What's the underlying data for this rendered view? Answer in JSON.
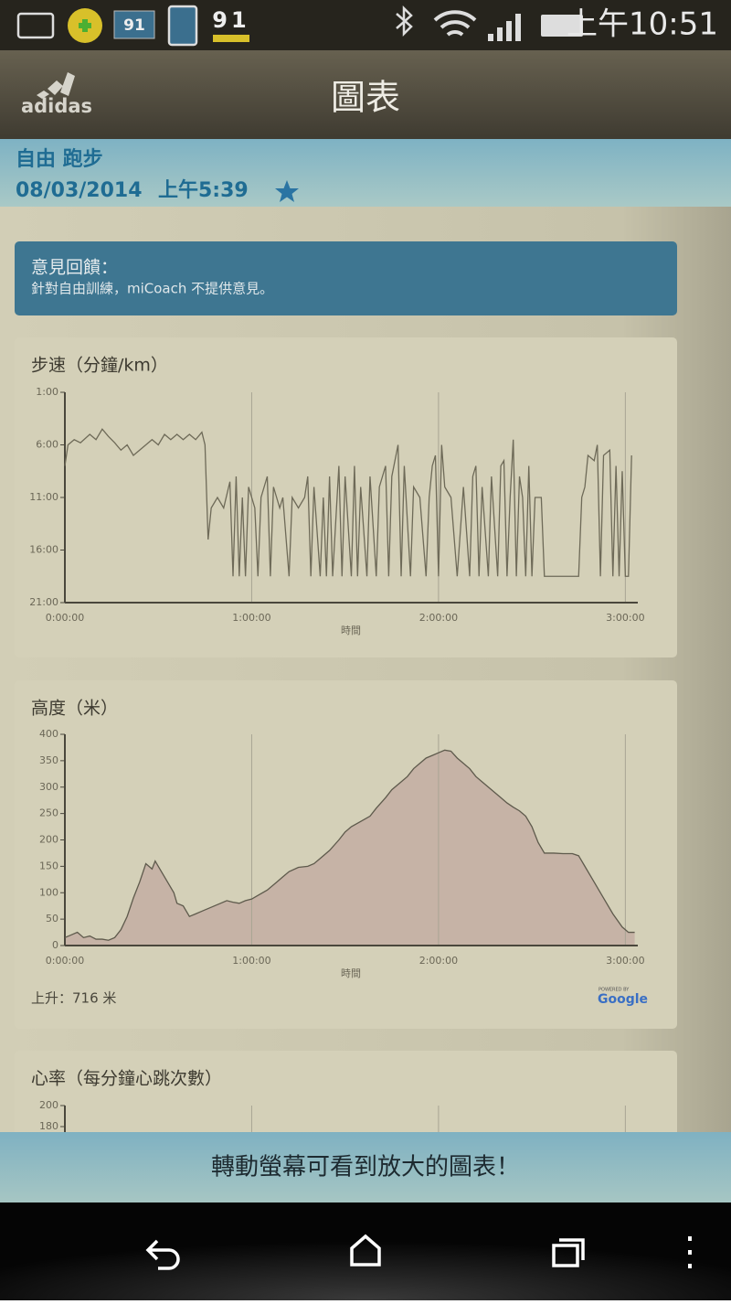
{
  "status_bar": {
    "badge_1": "91",
    "badge_2": "91",
    "time": "上午10:51"
  },
  "header": {
    "logo": "adidas",
    "title": "圖表"
  },
  "activity": {
    "type": "自由 跑步",
    "date": "08/03/2014",
    "time": "上午5:39"
  },
  "feedback": {
    "title": "意見回饋：",
    "text": "針對自由訓練，miCoach 不提供意見。"
  },
  "charts": [
    {
      "type": "line",
      "title": "步速（分鐘/km）",
      "x_label": "時間",
      "color": "#6e6a58",
      "x": [
        0,
        1,
        3,
        5,
        8,
        10,
        12,
        14,
        16,
        18,
        20,
        22,
        24,
        26,
        28,
        30,
        32,
        34,
        36,
        38,
        40,
        42,
        44,
        45,
        46,
        47,
        49,
        51,
        53,
        54,
        55,
        56,
        57,
        58,
        59,
        61,
        62,
        63,
        65,
        66,
        67,
        69,
        70,
        72,
        73,
        75,
        77,
        78,
        79,
        80,
        82,
        83,
        84,
        85,
        86,
        88,
        89,
        90,
        92,
        93,
        94,
        95,
        97,
        98,
        100,
        101,
        103,
        104,
        105,
        107,
        108,
        109,
        111,
        112,
        114,
        116,
        117,
        118,
        119,
        120,
        121,
        122,
        124,
        126,
        128,
        130,
        131,
        132,
        133,
        134,
        136,
        137,
        139,
        140,
        141,
        142,
        143,
        144,
        145,
        146,
        147,
        148,
        149,
        150,
        151,
        153,
        154,
        162,
        165,
        166,
        167,
        168,
        170,
        171,
        172,
        173,
        175,
        176,
        177,
        178,
        179,
        180,
        181,
        182
      ],
      "values": [
        8,
        6,
        5.5,
        5.8,
        5,
        5.5,
        4.5,
        5.2,
        5.8,
        6.5,
        6,
        7,
        6.5,
        6,
        5.5,
        6,
        5,
        5.5,
        5,
        5.5,
        5,
        5.5,
        4.8,
        6,
        15,
        12,
        11,
        12,
        9.5,
        18.5,
        9,
        18.5,
        11,
        18.5,
        10,
        12,
        18.5,
        11,
        9,
        18.5,
        10,
        12,
        11,
        18.5,
        11,
        12,
        11,
        9,
        18.5,
        10,
        18.5,
        11,
        18.5,
        9,
        18.5,
        8,
        18.5,
        9,
        18.5,
        8,
        18.5,
        10,
        18.5,
        9,
        18.5,
        10,
        8,
        18.5,
        9,
        6,
        18.5,
        8,
        18.5,
        10,
        11,
        18.5,
        11,
        8,
        7,
        18.5,
        6,
        10,
        11,
        18.5,
        10,
        18.5,
        9,
        8,
        18.5,
        10,
        18.5,
        9,
        18.5,
        8,
        7.5,
        18.5,
        11,
        5.5,
        18.5,
        9,
        11,
        18.5,
        8,
        18.5,
        11,
        11,
        18.5,
        18.5,
        18.5,
        11,
        10,
        7,
        7.5,
        6,
        18.5,
        7,
        6.5,
        18.5,
        8,
        18.5,
        8.5,
        18.5,
        18.5,
        7
      ],
      "xlim": [
        0,
        184
      ],
      "xticks": [
        {
          "value": 0,
          "label": "0:00:00"
        },
        {
          "value": 60,
          "label": "1:00:00"
        },
        {
          "value": 120,
          "label": "2:00:00"
        },
        {
          "value": 180,
          "label": "3:00:00"
        }
      ],
      "ylim": [
        21,
        1
      ],
      "yticks": [
        {
          "value": 1,
          "label": "1:00"
        },
        {
          "value": 6,
          "label": "6:00"
        },
        {
          "value": 11,
          "label": "11:00"
        },
        {
          "value": 16,
          "label": "16:00"
        },
        {
          "value": 21,
          "label": "21:00"
        }
      ]
    },
    {
      "type": "area",
      "title": "高度（米）",
      "x_label": "時間",
      "color": "#5e5a4c",
      "fill": "#c6b3a6",
      "x": [
        0,
        2,
        4,
        6,
        8,
        10,
        12,
        14,
        16,
        18,
        20,
        22,
        24,
        26,
        28,
        29,
        31,
        33,
        35,
        36,
        38,
        40,
        42,
        44,
        46,
        48,
        50,
        52,
        54,
        56,
        58,
        60,
        62,
        65,
        68,
        70,
        72,
        75,
        78,
        80,
        82,
        85,
        88,
        90,
        92,
        95,
        98,
        100,
        103,
        105,
        108,
        110,
        112,
        114,
        116,
        118,
        120,
        122,
        124,
        126,
        128,
        130,
        132,
        134,
        136,
        138,
        140,
        142,
        144,
        146,
        148,
        150,
        152,
        154,
        157,
        160,
        163,
        165,
        167,
        170,
        173,
        176,
        179,
        181,
        183
      ],
      "values": [
        15,
        20,
        25,
        15,
        18,
        12,
        12,
        10,
        15,
        30,
        55,
        90,
        120,
        155,
        145,
        160,
        140,
        120,
        100,
        80,
        75,
        55,
        60,
        65,
        70,
        75,
        80,
        85,
        82,
        80,
        85,
        88,
        95,
        105,
        120,
        130,
        140,
        148,
        150,
        155,
        165,
        180,
        200,
        215,
        225,
        235,
        245,
        260,
        280,
        295,
        310,
        320,
        335,
        345,
        355,
        360,
        365,
        370,
        368,
        355,
        345,
        335,
        320,
        310,
        300,
        290,
        280,
        270,
        262,
        255,
        245,
        225,
        195,
        175,
        175,
        174,
        174,
        170,
        150,
        120,
        90,
        60,
        35,
        25,
        25
      ],
      "xlim": [
        0,
        184
      ],
      "xticks": [
        {
          "value": 0,
          "label": "0:00:00"
        },
        {
          "value": 60,
          "label": "1:00:00"
        },
        {
          "value": 120,
          "label": "2:00:00"
        },
        {
          "value": 180,
          "label": "3:00:00"
        }
      ],
      "ylim": [
        0,
        400
      ],
      "yticks": [
        0,
        50,
        100,
        150,
        200,
        250,
        300,
        350,
        400
      ],
      "footer": "上升：716 米",
      "attribution_prefix": "POWERED BY",
      "attribution": "Google"
    },
    {
      "type": "line",
      "title": "心率（每分鐘心跳次數）",
      "xlim": [
        0,
        184
      ],
      "xgrid": [
        60,
        120,
        180
      ],
      "ylim": [
        0,
        200
      ],
      "yticks": [
        200,
        180
      ]
    }
  ],
  "banner": {
    "text": "轉動螢幕可看到放大的圖表！"
  }
}
